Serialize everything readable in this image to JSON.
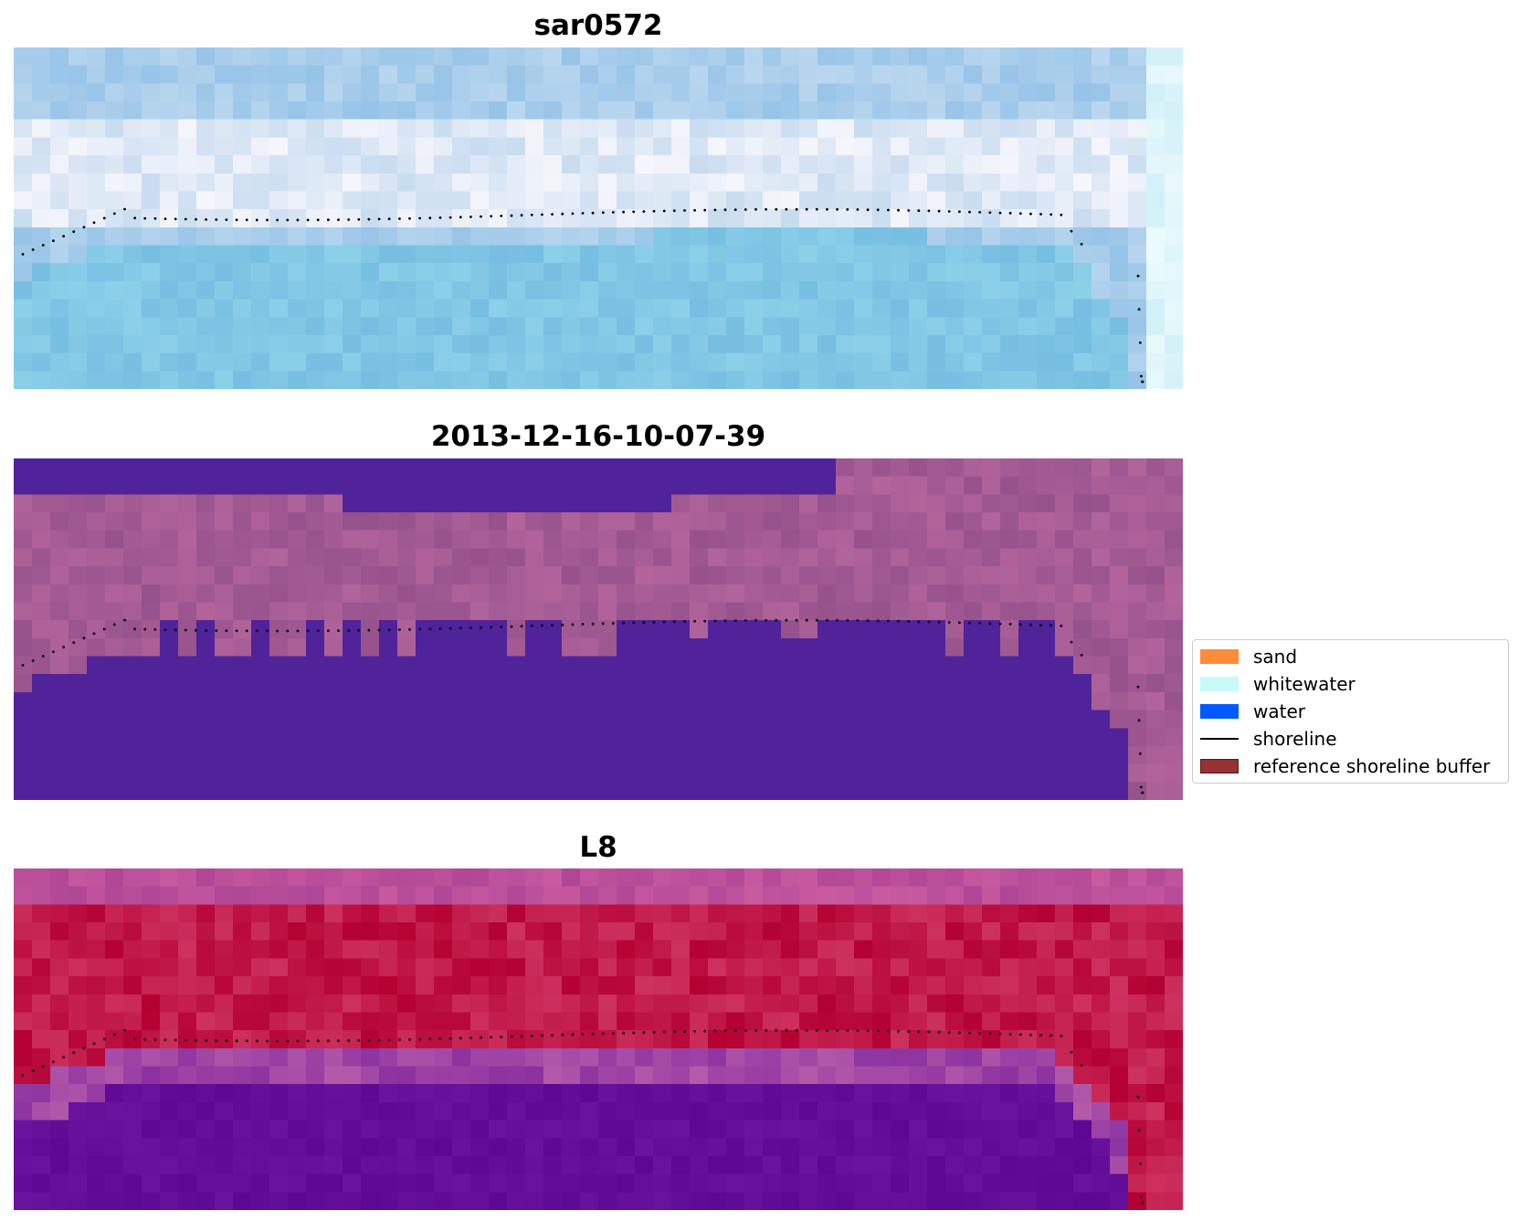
{
  "panels": [
    {
      "title": "sar0572",
      "palette": "sar",
      "band": {
        "start": 0.25,
        "end": 0.58
      }
    },
    {
      "title": "2013-12-16-10-07-39",
      "palette": "classified",
      "band": {
        "start": 0.15,
        "end": 0.5
      }
    },
    {
      "title": "L8",
      "palette": "index",
      "band": {
        "start": 0.0,
        "end": 0.62
      }
    }
  ],
  "legend": {
    "items": [
      {
        "label": "sand",
        "color": "#ff8c3a",
        "kind": "patch"
      },
      {
        "label": "whitewater",
        "color": "#c8fafa",
        "kind": "patch"
      },
      {
        "label": "water",
        "color": "#005aff",
        "kind": "patch"
      },
      {
        "label": "shoreline",
        "color": "#000000",
        "kind": "line"
      },
      {
        "label": "reference shoreline buffer",
        "color": "#963232",
        "kind": "patch"
      }
    ]
  },
  "colors": {
    "water_class": "#51239b",
    "shoreline": "#000000"
  }
}
